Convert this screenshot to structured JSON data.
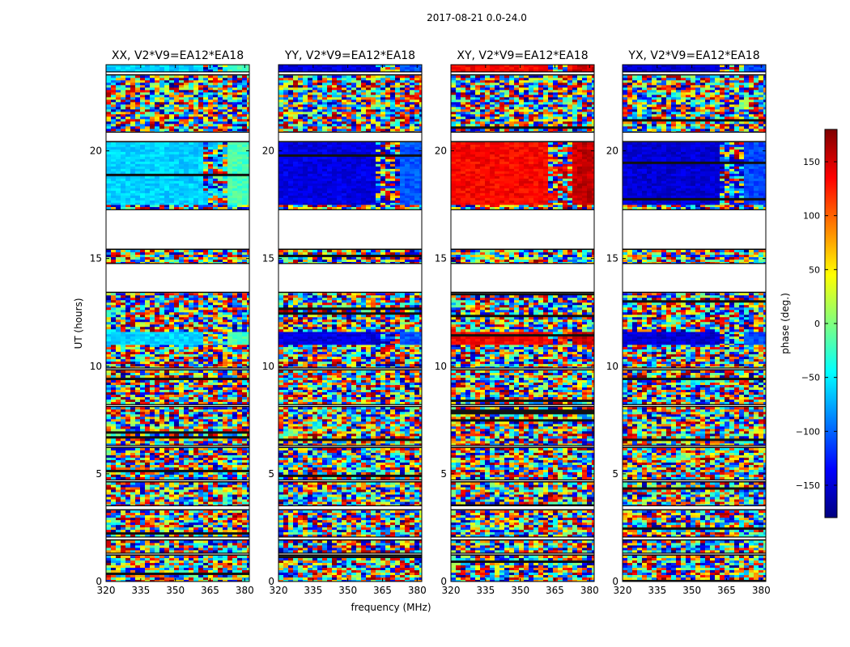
{
  "chart_data": {
    "type": "heatmap",
    "suptitle": "2017-08-21 0.0-24.0",
    "xlabel": "frequency (MHz)",
    "ylabel": "UT (hours)",
    "xlim": [
      320,
      382
    ],
    "ylim": [
      0,
      24
    ],
    "xticks": [
      320,
      335,
      350,
      365,
      380
    ],
    "yticks": [
      0,
      5,
      10,
      15,
      20
    ],
    "colorbar": {
      "label": "phase (deg.)",
      "range": [
        -180,
        180
      ],
      "ticks": [
        150,
        100,
        50,
        0,
        -50,
        -100,
        -150
      ],
      "tick_labels": [
        "150",
        "100",
        "50",
        "0",
        "−50",
        "−100",
        "−150"
      ],
      "colormap": "jet",
      "colors": [
        "#00007f",
        "#0000ff",
        "#007fff",
        "#00ffff",
        "#7fff7f",
        "#ffff00",
        "#ff7f00",
        "#ff0000",
        "#7f0000"
      ]
    },
    "panels": [
      {
        "title": "XX, V2*V9=EA12*EA18",
        "coherent_phase_deg": -60
      },
      {
        "title": "YY, V2*V9=EA12*EA18",
        "coherent_phase_deg": -145
      },
      {
        "title": "XY, V2*V9=EA12*EA18",
        "coherent_phase_deg": 135
      },
      {
        "title": "YX, V2*V9=EA12*EA18",
        "coherent_phase_deg": -150
      }
    ],
    "segments": [
      {
        "t0": 0.0,
        "t1": 1.2,
        "kind": "noise"
      },
      {
        "t0": 1.2,
        "t1": 1.35,
        "kind": "flag"
      },
      {
        "t0": 1.35,
        "t1": 1.9,
        "kind": "noise"
      },
      {
        "t0": 1.9,
        "t1": 2.1,
        "kind": "flag"
      },
      {
        "t0": 2.1,
        "t1": 3.3,
        "kind": "noise"
      },
      {
        "t0": 3.3,
        "t1": 3.55,
        "kind": "flag"
      },
      {
        "t0": 3.55,
        "t1": 4.6,
        "kind": "noise"
      },
      {
        "t0": 4.6,
        "t1": 4.75,
        "kind": "flag"
      },
      {
        "t0": 4.75,
        "t1": 6.2,
        "kind": "noise"
      },
      {
        "t0": 6.2,
        "t1": 6.35,
        "kind": "flag"
      },
      {
        "t0": 6.35,
        "t1": 8.1,
        "kind": "noise"
      },
      {
        "t0": 8.1,
        "t1": 8.25,
        "kind": "flag"
      },
      {
        "t0": 8.25,
        "t1": 9.8,
        "kind": "noise"
      },
      {
        "t0": 9.8,
        "t1": 9.95,
        "kind": "flag"
      },
      {
        "t0": 9.95,
        "t1": 11.0,
        "kind": "noise"
      },
      {
        "t0": 11.0,
        "t1": 11.6,
        "kind": "coherent"
      },
      {
        "t0": 11.6,
        "t1": 13.4,
        "kind": "noise"
      },
      {
        "t0": 13.4,
        "t1": 14.8,
        "kind": "flag"
      },
      {
        "t0": 14.8,
        "t1": 15.4,
        "kind": "noise"
      },
      {
        "t0": 15.4,
        "t1": 17.3,
        "kind": "flag"
      },
      {
        "t0": 17.3,
        "t1": 17.5,
        "kind": "noise"
      },
      {
        "t0": 17.5,
        "t1": 20.4,
        "kind": "coherent"
      },
      {
        "t0": 20.4,
        "t1": 20.9,
        "kind": "flag"
      },
      {
        "t0": 20.9,
        "t1": 23.5,
        "kind": "noise"
      },
      {
        "t0": 23.5,
        "t1": 23.7,
        "kind": "flag"
      },
      {
        "t0": 23.7,
        "t1": 24.0,
        "kind": "coherent"
      }
    ],
    "rfi_band_mhz": [
      362,
      372
    ]
  }
}
